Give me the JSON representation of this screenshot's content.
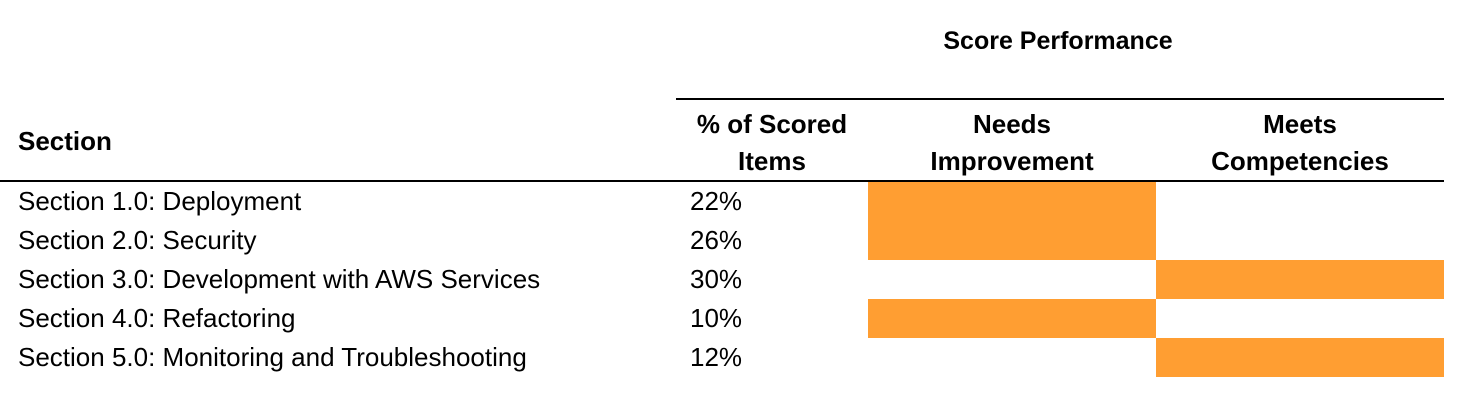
{
  "table": {
    "group_title": "Score Performance",
    "headers": {
      "section": "Section",
      "pct_scored": "% of Scored\nItems",
      "needs_improvement": "Needs\nImprovement",
      "meets_competencies": "Meets\nCompetencies"
    },
    "rows": [
      {
        "section": "Section 1.0: Deployment",
        "pct": "22%",
        "rating": "needs_improvement"
      },
      {
        "section": "Section 2.0: Security",
        "pct": "26%",
        "rating": "needs_improvement"
      },
      {
        "section": "Section 3.0: Development with AWS Services",
        "pct": "30%",
        "rating": "meets_competencies"
      },
      {
        "section": "Section 4.0: Refactoring",
        "pct": "10%",
        "rating": "needs_improvement"
      },
      {
        "section": "Section 5.0: Monitoring and Troubleshooting",
        "pct": "12%",
        "rating": "meets_competencies"
      }
    ]
  },
  "colors": {
    "highlight": "#FF9E32",
    "rule": "#000000"
  }
}
